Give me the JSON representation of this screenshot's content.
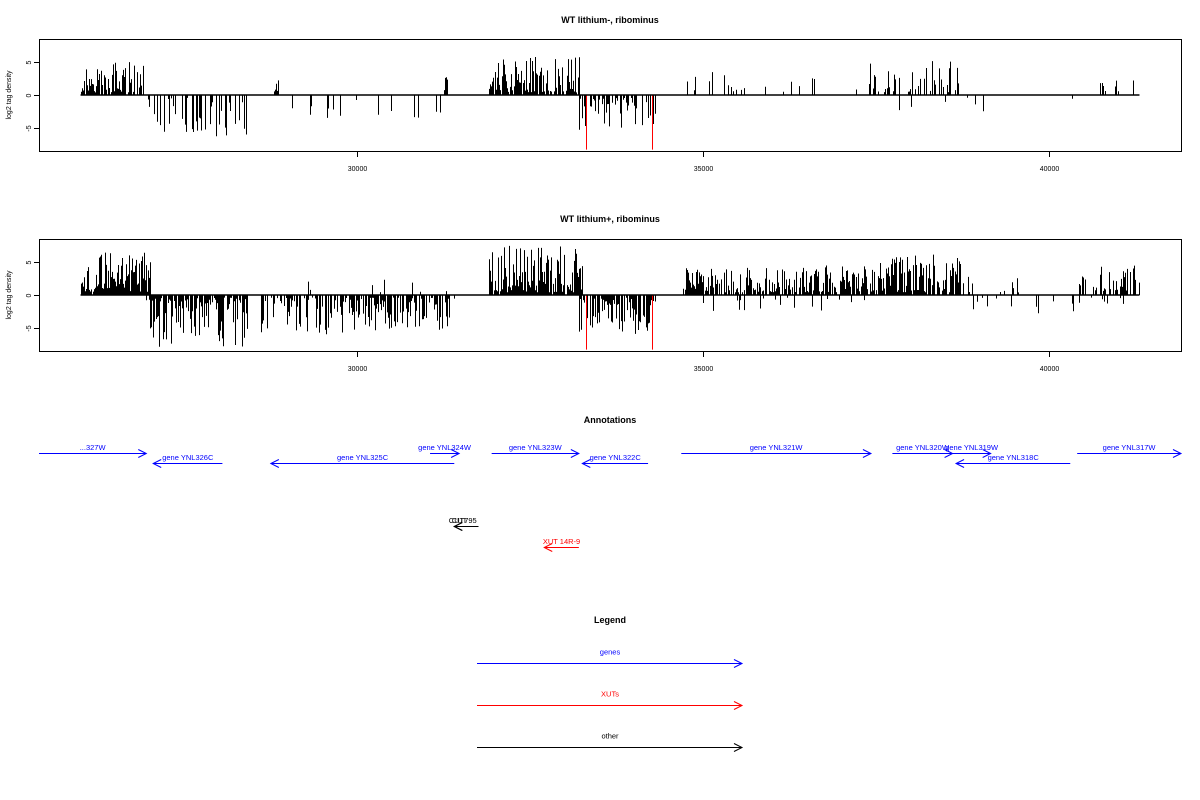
{
  "colors": {
    "bar": "#000000",
    "highlight": "#ff0000",
    "genes": "#0000ff",
    "xuts": "#ff0000",
    "other": "#000000",
    "frame": "#000000"
  },
  "chart_data": [
    {
      "type": "bar",
      "title": "WT lithium-, ribominus",
      "ylabel": "log2 tag density",
      "xlim": [
        25400,
        41900
      ],
      "ylim": [
        -8.5,
        8.5
      ],
      "xticks": [
        30000,
        35000,
        40000
      ],
      "yticks": [
        5,
        0,
        -5
      ],
      "highlight_x": [
        33300,
        34250
      ],
      "highlight_min": -8.3,
      "regions": [
        {
          "from": 26000,
          "to": 26900,
          "sign": 1,
          "density": 0.85,
          "max": 5.2
        },
        {
          "from": 26950,
          "to": 28450,
          "sign": -1,
          "density": 0.35,
          "max": 6.3
        },
        {
          "from": 28800,
          "to": 28850,
          "sign": 1,
          "density": 1.0,
          "max": 3.0
        },
        {
          "from": 28850,
          "to": 31300,
          "sign": -1,
          "density": 0.12,
          "max": 4.0
        },
        {
          "from": 31250,
          "to": 31300,
          "sign": 1,
          "density": 1.0,
          "max": 3.0
        },
        {
          "from": 31900,
          "to": 33200,
          "sign": 1,
          "density": 0.85,
          "max": 6.0
        },
        {
          "from": 33200,
          "to": 34300,
          "sign": -1,
          "density": 0.55,
          "max": 5.5
        },
        {
          "from": 34700,
          "to": 35500,
          "sign": 1,
          "density": 0.22,
          "max": 3.5
        },
        {
          "from": 35500,
          "to": 37400,
          "sign": 1,
          "density": 0.12,
          "max": 3.2
        },
        {
          "from": 37400,
          "to": 38700,
          "sign": 1,
          "density": 0.4,
          "max": 5.2
        },
        {
          "from": 36900,
          "to": 39200,
          "sign": -1,
          "density": 0.02,
          "max": 2.8
        },
        {
          "from": 40300,
          "to": 40400,
          "sign": -1,
          "density": 0.2,
          "max": 1.2
        },
        {
          "from": 40700,
          "to": 41250,
          "sign": 1,
          "density": 0.2,
          "max": 3.8
        }
      ]
    },
    {
      "type": "bar",
      "title": "WT lithium+, ribominus",
      "ylabel": "log2 tag density",
      "xlim": [
        25400,
        41900
      ],
      "ylim": [
        -8.5,
        8.5
      ],
      "xticks": [
        30000,
        35000,
        40000
      ],
      "yticks": [
        5,
        0,
        -5
      ],
      "highlight_x": [
        33300,
        34250
      ],
      "highlight_min": -8.3,
      "regions": [
        {
          "from": 26000,
          "to": 27000,
          "sign": 1,
          "density": 0.95,
          "max": 6.5
        },
        {
          "from": 26950,
          "to": 28400,
          "sign": -1,
          "density": 0.85,
          "max": 8.0
        },
        {
          "from": 28600,
          "to": 31400,
          "sign": -1,
          "density": 0.6,
          "max": 6.0
        },
        {
          "from": 29000,
          "to": 31400,
          "sign": 1,
          "density": 0.05,
          "max": 2.5
        },
        {
          "from": 31900,
          "to": 33250,
          "sign": 1,
          "density": 0.95,
          "max": 7.5
        },
        {
          "from": 33200,
          "to": 34300,
          "sign": -1,
          "density": 0.75,
          "max": 6.0
        },
        {
          "from": 34700,
          "to": 37400,
          "sign": 1,
          "density": 0.75,
          "max": 4.5
        },
        {
          "from": 34700,
          "to": 37400,
          "sign": -1,
          "density": 0.08,
          "max": 2.8
        },
        {
          "from": 37400,
          "to": 38700,
          "sign": 1,
          "density": 0.85,
          "max": 6.5
        },
        {
          "from": 38700,
          "to": 39600,
          "sign": 1,
          "density": 0.12,
          "max": 2.8
        },
        {
          "from": 38700,
          "to": 41300,
          "sign": -1,
          "density": 0.08,
          "max": 2.8
        },
        {
          "from": 40400,
          "to": 41300,
          "sign": 1,
          "density": 0.55,
          "max": 4.5
        }
      ]
    }
  ],
  "annotations": {
    "title": "Annotations",
    "features": [
      {
        "label": "327W",
        "kind": "genes",
        "start": 25400,
        "end": 26950,
        "strand": "+",
        "row": 1,
        "prefix": "..."
      },
      {
        "label": "gene YNL326C",
        "kind": "genes",
        "start": 27050,
        "end": 28050,
        "strand": "-",
        "row": 2
      },
      {
        "label": "gene YNL325C",
        "kind": "genes",
        "start": 28750,
        "end": 31400,
        "strand": "-",
        "row": 2
      },
      {
        "label": "gene YNL324W",
        "kind": "genes",
        "start": 31050,
        "end": 31470,
        "strand": "+",
        "row": 1
      },
      {
        "label": "gene YNL323W",
        "kind": "genes",
        "start": 31940,
        "end": 33200,
        "strand": "+",
        "row": 1
      },
      {
        "label": "gene YNL322C",
        "kind": "genes",
        "start": 33250,
        "end": 34200,
        "strand": "-",
        "row": 2
      },
      {
        "label": "gene YNL321W",
        "kind": "genes",
        "start": 34680,
        "end": 37420,
        "strand": "+",
        "row": 1
      },
      {
        "label": "gene YNL320W",
        "kind": "genes",
        "start": 37730,
        "end": 38600,
        "strand": "+",
        "row": 1
      },
      {
        "label": "gene YNL319W",
        "kind": "genes",
        "start": 38600,
        "end": 39150,
        "strand": "+",
        "row": 1
      },
      {
        "label": "gene YNL318C",
        "kind": "genes",
        "start": 38650,
        "end": 40300,
        "strand": "-",
        "row": 2
      },
      {
        "label": "gene YNL317W",
        "kind": "genes",
        "start": 40400,
        "end": 41900,
        "strand": "+",
        "row": 1
      },
      {
        "label": "CUT",
        "kind": "other",
        "start": 31400,
        "end": 31550,
        "strand": "-",
        "row": 6
      },
      {
        "label": "CUT795",
        "kind": "other",
        "start": 31400,
        "end": 31750,
        "strand": "-",
        "row": 6,
        "label_offset": 0.35
      },
      {
        "label": "XUT 14R-9",
        "kind": "xuts",
        "start": 32700,
        "end": 33200,
        "strand": "-",
        "row": 8
      }
    ]
  },
  "legend": {
    "title": "Legend",
    "items": [
      {
        "label": "genes",
        "kind": "genes"
      },
      {
        "label": "XUTs",
        "kind": "xuts"
      },
      {
        "label": "other",
        "kind": "other"
      }
    ]
  }
}
